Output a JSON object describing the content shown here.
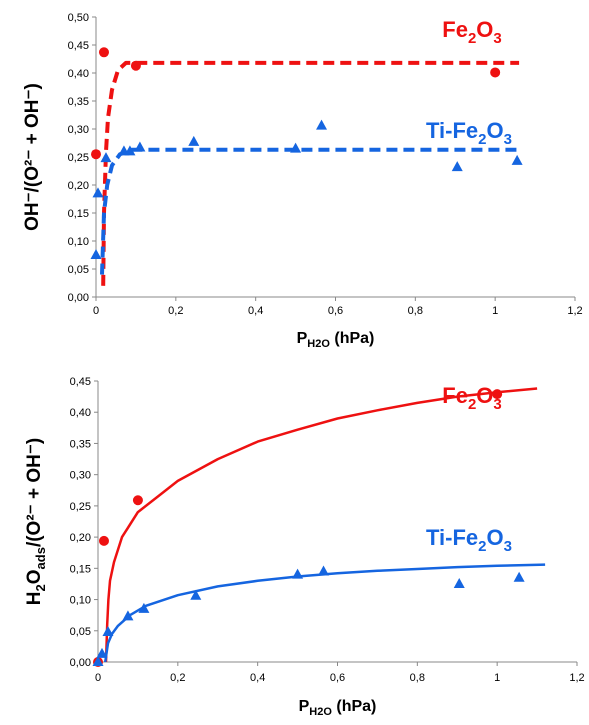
{
  "chart_data": [
    {
      "type": "scatter",
      "xlim": [
        0,
        1.2
      ],
      "ylim": [
        0,
        0.5
      ],
      "x_ticks": [
        "0",
        "0,2",
        "0,4",
        "0,6",
        "0,8",
        "1",
        "1,2"
      ],
      "y_ticks": [
        "0,00",
        "0,05",
        "0,10",
        "0,15",
        "0,20",
        "0,25",
        "0,30",
        "0,35",
        "0,40",
        "0,45",
        "0,50"
      ],
      "xlabel": {
        "main": "P",
        "sub": "H2O",
        "rest": " (hPa)"
      },
      "ylabel": "OH⁻/(O²⁻ + OH⁻)",
      "fit_style": "dashed",
      "series": [
        {
          "name": {
            "pre": "Fe",
            "s1": "2",
            "mid": "O",
            "s2": "3"
          },
          "color": "#ee1111",
          "marker": "circle",
          "points": [
            [
              0.0,
              0.255
            ],
            [
              0.02,
              0.437
            ],
            [
              0.1,
              0.413
            ],
            [
              1.0,
              0.401
            ]
          ],
          "fit": [
            [
              0.018,
              0.02
            ],
            [
              0.02,
              0.15
            ],
            [
              0.025,
              0.26
            ],
            [
              0.03,
              0.32
            ],
            [
              0.04,
              0.37
            ],
            [
              0.055,
              0.405
            ],
            [
              0.075,
              0.418
            ],
            [
              1.06,
              0.418
            ]
          ]
        },
        {
          "name": {
            "pre": "Ti-Fe",
            "s1": "2",
            "mid": "O",
            "s2": "3"
          },
          "color": "#1565e0",
          "marker": "triangle",
          "points": [
            [
              0.0,
              0.075
            ],
            [
              0.005,
              0.185
            ],
            [
              0.025,
              0.248
            ],
            [
              0.07,
              0.26
            ],
            [
              0.085,
              0.26
            ],
            [
              0.11,
              0.267
            ],
            [
              0.245,
              0.277
            ],
            [
              0.5,
              0.265
            ],
            [
              0.565,
              0.306
            ],
            [
              0.905,
              0.232
            ],
            [
              1.055,
              0.243
            ]
          ],
          "fit": [
            [
              0.015,
              0.04
            ],
            [
              0.02,
              0.15
            ],
            [
              0.028,
              0.2
            ],
            [
              0.04,
              0.235
            ],
            [
              0.06,
              0.255
            ],
            [
              0.09,
              0.263
            ],
            [
              1.06,
              0.263
            ]
          ]
        }
      ]
    },
    {
      "type": "scatter",
      "xlim": [
        0,
        1.2
      ],
      "ylim": [
        0,
        0.45
      ],
      "x_ticks": [
        "0",
        "0,2",
        "0,4",
        "0,6",
        "0,8",
        "1",
        "1,2"
      ],
      "y_ticks": [
        "0,00",
        "0,05",
        "0,10",
        "0,15",
        "0,20",
        "0,25",
        "0,30",
        "0,35",
        "0,40",
        "0,45"
      ],
      "xlabel": {
        "main": "P",
        "sub": "H2O",
        "rest": " (hPa)"
      },
      "ylabel": {
        "a": "H",
        "a_sub": "2",
        "b": "O",
        "b_sub": "ads",
        "c": "/(O²⁻ + OH⁻)"
      },
      "fit_style": "solid",
      "series": [
        {
          "name": {
            "pre": "Fe",
            "s1": "2",
            "mid": "O",
            "s2": "3"
          },
          "color": "#ee1111",
          "marker": "circle",
          "points": [
            [
              0.0,
              0.0
            ],
            [
              0.015,
              0.194
            ],
            [
              0.1,
              0.259
            ],
            [
              1.0,
              0.429
            ]
          ],
          "fit": [
            [
              0.02,
              0.0
            ],
            [
              0.023,
              0.06
            ],
            [
              0.026,
              0.1
            ],
            [
              0.03,
              0.13
            ],
            [
              0.04,
              0.16
            ],
            [
              0.06,
              0.2
            ],
            [
              0.1,
              0.24
            ],
            [
              0.15,
              0.265
            ],
            [
              0.2,
              0.29
            ],
            [
              0.3,
              0.325
            ],
            [
              0.4,
              0.353
            ],
            [
              0.5,
              0.372
            ],
            [
              0.6,
              0.39
            ],
            [
              0.7,
              0.403
            ],
            [
              0.8,
              0.415
            ],
            [
              0.9,
              0.425
            ],
            [
              1.0,
              0.432
            ],
            [
              1.1,
              0.438
            ]
          ]
        },
        {
          "name": {
            "pre": "Ti-Fe",
            "s1": "2",
            "mid": "O",
            "s2": "3"
          },
          "color": "#1565e0",
          "marker": "triangle",
          "points": [
            [
              0.0,
              0.0
            ],
            [
              0.01,
              0.013
            ],
            [
              0.025,
              0.048
            ],
            [
              0.075,
              0.073
            ],
            [
              0.115,
              0.085
            ],
            [
              0.245,
              0.106
            ],
            [
              0.5,
              0.14
            ],
            [
              0.565,
              0.145
            ],
            [
              0.905,
              0.125
            ],
            [
              1.055,
              0.135
            ]
          ],
          "fit": [
            [
              0.018,
              0.0
            ],
            [
              0.025,
              0.03
            ],
            [
              0.035,
              0.045
            ],
            [
              0.05,
              0.058
            ],
            [
              0.08,
              0.075
            ],
            [
              0.12,
              0.09
            ],
            [
              0.2,
              0.107
            ],
            [
              0.3,
              0.121
            ],
            [
              0.4,
              0.13
            ],
            [
              0.5,
              0.137
            ],
            [
              0.6,
              0.142
            ],
            [
              0.7,
              0.146
            ],
            [
              0.8,
              0.149
            ],
            [
              0.9,
              0.152
            ],
            [
              1.0,
              0.154
            ],
            [
              1.12,
              0.156
            ]
          ]
        }
      ]
    }
  ]
}
